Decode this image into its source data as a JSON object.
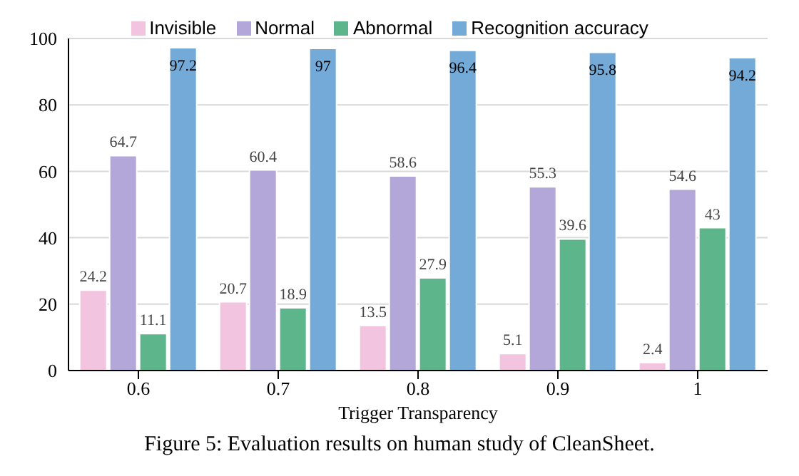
{
  "chart_data": {
    "type": "bar",
    "xlabel": "Trigger Transparency",
    "categories": [
      "0.6",
      "0.7",
      "0.8",
      "0.9",
      "1"
    ],
    "series": [
      {
        "name": "Invisible",
        "color": "#f2c4df",
        "values": [
          24.2,
          20.7,
          13.5,
          5.1,
          2.4
        ]
      },
      {
        "name": "Normal",
        "color": "#b3a6d9",
        "values": [
          64.7,
          60.4,
          58.6,
          55.3,
          54.6
        ]
      },
      {
        "name": "Abnormal",
        "color": "#5db58c",
        "values": [
          11.1,
          18.9,
          27.9,
          39.6,
          43
        ]
      },
      {
        "name": "Recognition accuracy",
        "color": "#74aad8",
        "values": [
          97.2,
          97,
          96.4,
          95.8,
          94.2
        ]
      }
    ],
    "ylim": [
      0,
      100
    ],
    "yticks": [
      0,
      20,
      40,
      60,
      80,
      100
    ],
    "grid": "y",
    "legend": "top",
    "data_labels": true,
    "annotations": [
      "Figure 5: Evaluation results on human study of CleanSheet."
    ]
  }
}
